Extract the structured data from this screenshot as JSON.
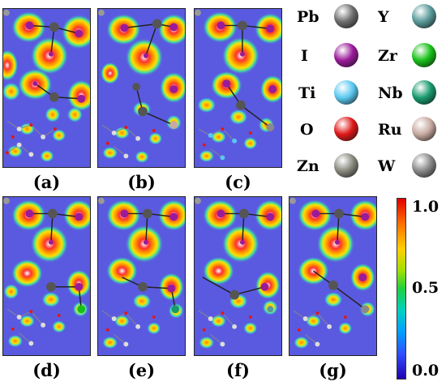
{
  "panels": [
    {
      "label": "(a)"
    },
    {
      "label": "(b)"
    },
    {
      "label": "(c)"
    },
    {
      "label": "(d)"
    },
    {
      "label": "(e)"
    },
    {
      "label": "(f)"
    },
    {
      "label": "(g)"
    }
  ],
  "legend": [
    {
      "symbol": "Pb",
      "color": "#6e6e6e"
    },
    {
      "symbol": "Y",
      "color": "#5a9a9a"
    },
    {
      "symbol": "I",
      "color": "#9a1a9a"
    },
    {
      "symbol": "Zr",
      "color": "#18c018"
    },
    {
      "symbol": "Ti",
      "color": "#5ac8f0"
    },
    {
      "symbol": "Nb",
      "color": "#189a6e"
    },
    {
      "symbol": "O",
      "color": "#e01818"
    },
    {
      "symbol": "Ru",
      "color": "#c8aaa0"
    },
    {
      "symbol": "Zn",
      "color": "#8a8a80"
    },
    {
      "symbol": "W",
      "color": "#8a8a8a"
    }
  ],
  "colorbar": {
    "ticks": [
      "1.0",
      "0.5",
      "0.0"
    ]
  }
}
